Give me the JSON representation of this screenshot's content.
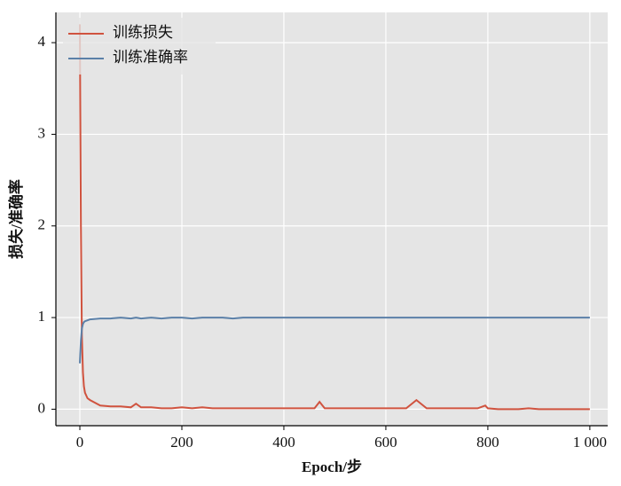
{
  "chart_data": {
    "type": "line",
    "xlabel": "Epoch/步",
    "ylabel": "损失/准确率",
    "x": [
      0,
      2,
      4,
      6,
      8,
      10,
      15,
      20,
      40,
      60,
      80,
      100,
      110,
      120,
      140,
      160,
      180,
      200,
      220,
      240,
      260,
      280,
      300,
      320,
      340,
      360,
      380,
      400,
      420,
      440,
      460,
      470,
      480,
      500,
      520,
      540,
      560,
      580,
      600,
      620,
      640,
      660,
      680,
      700,
      720,
      740,
      760,
      780,
      795,
      800,
      820,
      840,
      860,
      880,
      900,
      920,
      940,
      960,
      980,
      1000
    ],
    "series": [
      {
        "name": "训练损失",
        "color": "#d0533f",
        "values": [
          4.2,
          2.0,
          0.8,
          0.4,
          0.25,
          0.18,
          0.12,
          0.1,
          0.04,
          0.03,
          0.03,
          0.02,
          0.06,
          0.02,
          0.02,
          0.01,
          0.01,
          0.02,
          0.01,
          0.02,
          0.01,
          0.01,
          0.01,
          0.01,
          0.01,
          0.01,
          0.01,
          0.01,
          0.01,
          0.01,
          0.01,
          0.08,
          0.01,
          0.01,
          0.01,
          0.01,
          0.01,
          0.01,
          0.01,
          0.01,
          0.01,
          0.1,
          0.01,
          0.01,
          0.01,
          0.01,
          0.01,
          0.01,
          0.04,
          0.01,
          0,
          0,
          0,
          0.01,
          0,
          0,
          0,
          0,
          0,
          0
        ]
      },
      {
        "name": "训练准确率",
        "color": "#5b80a8",
        "values": [
          0.5,
          0.75,
          0.88,
          0.93,
          0.95,
          0.96,
          0.97,
          0.98,
          0.99,
          0.99,
          1,
          0.99,
          1,
          0.99,
          1,
          0.99,
          1,
          1,
          0.99,
          1,
          1,
          1,
          0.99,
          1,
          1,
          1,
          1,
          1,
          1,
          1,
          1,
          1,
          1,
          1,
          1,
          1,
          1,
          1,
          1,
          1,
          1,
          1,
          1,
          1,
          1,
          1,
          1,
          1,
          1,
          1,
          1,
          1,
          1,
          1,
          1,
          1,
          1,
          1,
          1,
          1
        ]
      }
    ],
    "xlim": [
      -47,
      1035
    ],
    "ylim": [
      -0.18,
      4.33
    ],
    "xticks": [
      0,
      200,
      400,
      600,
      800,
      {
        "value": 1000,
        "label": "1 000"
      }
    ],
    "yticks": [
      0,
      1,
      2,
      3,
      4
    ],
    "grid": true,
    "legend": "upper-left"
  }
}
